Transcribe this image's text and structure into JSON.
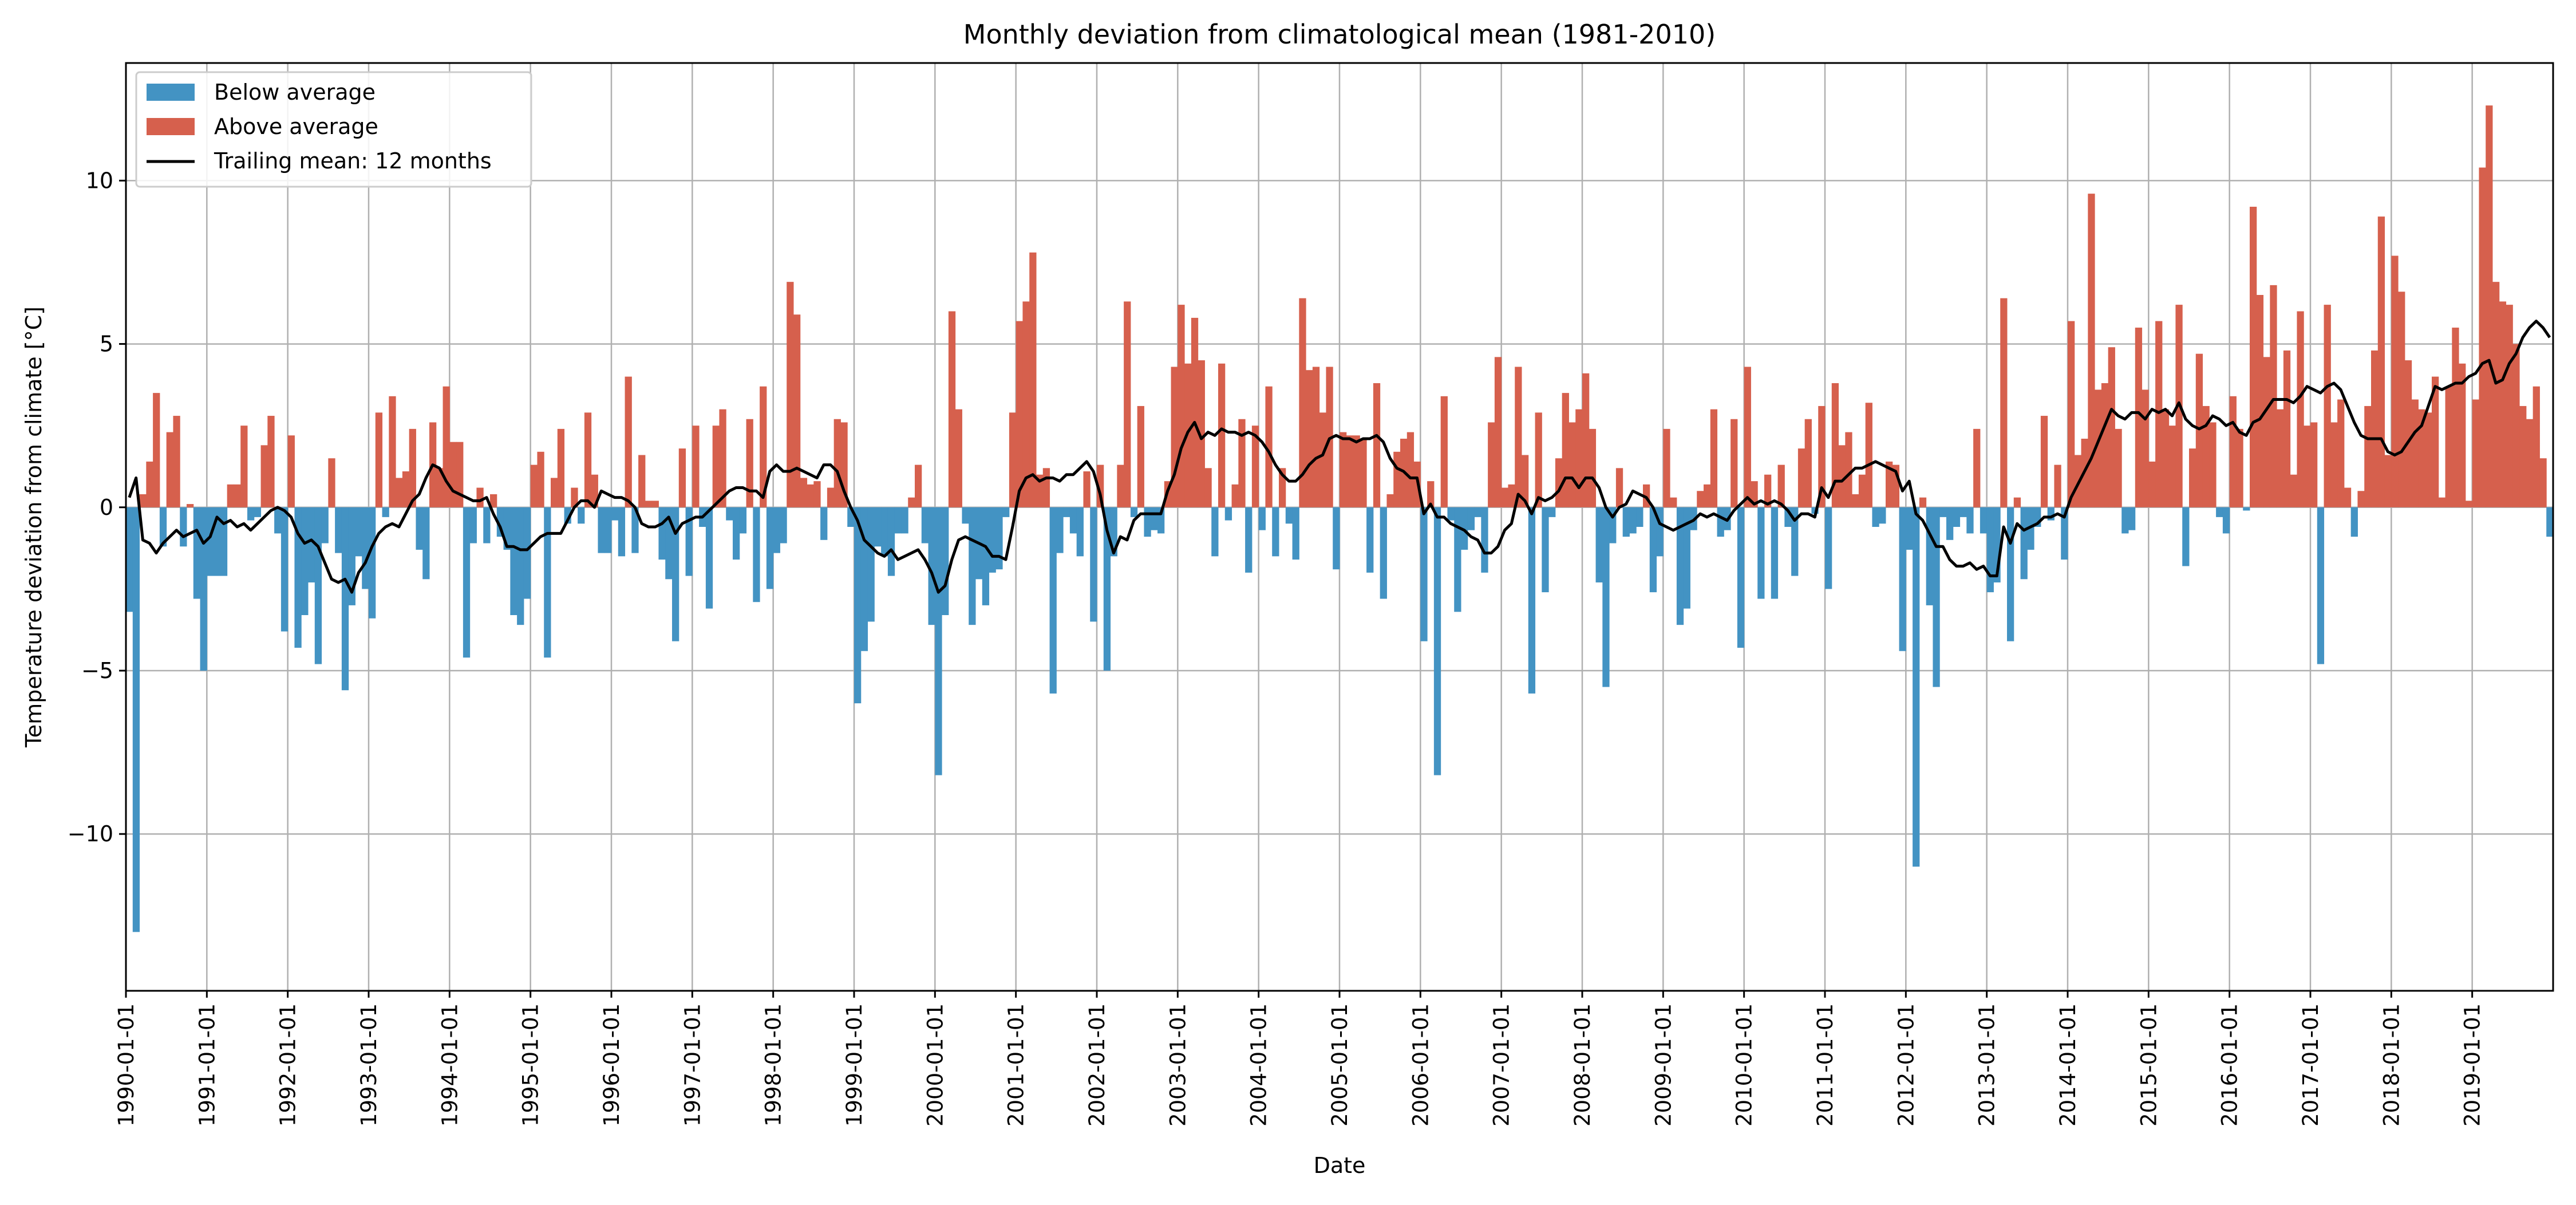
{
  "chart_data": {
    "type": "bar",
    "title": "Monthly deviation from climatological mean (1981-2010)",
    "xlabel": "Date",
    "ylabel": "Temperature deviation from climate [°C]",
    "ylim": [
      -14.8,
      13.6
    ],
    "y_ticks": [
      -10,
      -5,
      0,
      5,
      10
    ],
    "y_tick_labels": [
      "−10",
      "−5",
      "0",
      "5",
      "10"
    ],
    "x_tick_labels": [
      "1990-01-01",
      "1991-01-01",
      "1992-01-01",
      "1993-01-01",
      "1994-01-01",
      "1995-01-01",
      "1996-01-01",
      "1997-01-01",
      "1998-01-01",
      "1999-01-01",
      "2000-01-01",
      "2001-01-01",
      "2002-01-01",
      "2003-01-01",
      "2004-01-01",
      "2005-01-01",
      "2006-01-01",
      "2007-01-01",
      "2008-01-01",
      "2009-01-01",
      "2010-01-01",
      "2011-01-01",
      "2012-01-01",
      "2013-01-01",
      "2014-01-01",
      "2015-01-01",
      "2016-01-01",
      "2017-01-01",
      "2018-01-01",
      "2019-01-01"
    ],
    "x_start": "1990-01",
    "months": 360,
    "grid": true,
    "legend_position": "top-left",
    "legend": [
      "Below average",
      "Above average",
      "Trailing mean: 12 months"
    ],
    "colors": {
      "below": "#4393c3",
      "above": "#d6604d",
      "trailing_mean": "#000000"
    },
    "series": [
      {
        "name": "Monthly deviation",
        "values": [
          [
            -3.2,
            -13.0,
            0.4,
            1.4,
            3.5,
            -1.2,
            2.3,
            2.8,
            -1.2,
            0.1,
            -2.8,
            -5.0
          ],
          [
            -2.1,
            -2.1,
            -2.1,
            0.7,
            0.7,
            2.5,
            -0.4,
            -0.3,
            1.9,
            2.8,
            -0.8,
            -3.8
          ],
          [
            2.2,
            -4.3,
            -3.3,
            -2.3,
            -4.8,
            -1.1,
            1.5,
            -1.4,
            -5.6,
            -3.0,
            -1.5,
            -2.5
          ],
          [
            -3.4,
            2.9,
            -0.3,
            3.4,
            0.9,
            1.1,
            2.4,
            -1.3,
            -2.2,
            2.6,
            1.2,
            3.7
          ],
          [
            2.0,
            2.0,
            -4.6,
            -1.1,
            0.6,
            -1.1,
            0.4,
            -0.9,
            -1.3,
            -3.3,
            -3.6,
            -2.8
          ],
          [
            1.3,
            1.7,
            -4.6,
            0.9,
            2.4,
            -0.5,
            0.6,
            -0.5,
            2.9,
            1.0,
            -1.4,
            -1.4
          ],
          [
            -0.4,
            -1.5,
            4.0,
            -1.4,
            1.6,
            0.2,
            0.2,
            -1.6,
            -2.2,
            -4.1,
            1.8,
            -2.1
          ],
          [
            2.5,
            -0.6,
            -3.1,
            2.5,
            3.0,
            -0.4,
            -1.6,
            -0.8,
            2.7,
            -2.9,
            3.7,
            -2.5
          ],
          [
            -1.4,
            -1.1,
            6.9,
            5.9,
            0.9,
            0.7,
            0.8,
            -1.0,
            0.6,
            2.7,
            2.6,
            -0.6
          ],
          [
            -6.0,
            -4.4,
            -3.5,
            -1.2,
            -1.5,
            -2.1,
            -0.8,
            -0.8,
            0.3,
            1.3,
            -1.1,
            -3.6
          ],
          [
            -8.2,
            -3.3,
            6.0,
            3.0,
            -0.5,
            -3.6,
            -2.2,
            -3.0,
            -2.0,
            -1.9,
            -0.3,
            2.9
          ],
          [
            5.7,
            6.3,
            7.8,
            1.0,
            1.2,
            -5.7,
            -1.4,
            -0.3,
            -0.8,
            -1.5,
            1.1,
            -3.5
          ],
          [
            1.3,
            -5.0,
            -1.5,
            1.3,
            6.3,
            -0.3,
            3.1,
            -0.9,
            -0.7,
            -0.8,
            0.8,
            4.3
          ],
          [
            6.2,
            4.4,
            5.8,
            4.5,
            1.2,
            -1.5,
            4.4,
            -0.4,
            0.7,
            2.7,
            -2.0,
            2.5
          ],
          [
            -0.7,
            3.7,
            -1.5,
            1.2,
            -0.5,
            -1.6,
            6.4,
            4.2,
            4.3,
            2.9,
            4.3,
            -1.9
          ],
          [
            2.3,
            2.2,
            2.2,
            2.1,
            -2.0,
            3.8,
            -2.8,
            0.4,
            1.7,
            2.1,
            2.3,
            1.4
          ],
          [
            -4.1,
            0.8,
            -8.2,
            3.4,
            -0.4,
            -3.2,
            -1.3,
            -0.7,
            -0.3,
            -2.0,
            2.6,
            4.6
          ],
          [
            0.6,
            0.7,
            4.3,
            1.6,
            -5.7,
            2.9,
            -2.6,
            -0.3,
            1.5,
            3.5,
            2.6,
            3.0
          ],
          [
            4.1,
            2.4,
            -2.3,
            -5.5,
            -1.1,
            1.2,
            -0.9,
            -0.8,
            -0.6,
            0.7,
            -2.6,
            -1.5
          ],
          [
            2.4,
            0.3,
            -3.6,
            -3.1,
            -0.7,
            0.5,
            0.7,
            3.0,
            -0.9,
            -0.7,
            2.7,
            -4.3
          ],
          [
            4.3,
            0.8,
            -2.8,
            1.0,
            -2.8,
            1.3,
            -0.6,
            -2.1,
            1.8,
            2.7,
            -0.2,
            3.1
          ],
          [
            -2.5,
            3.8,
            1.9,
            2.3,
            0.4,
            1.0,
            3.2,
            -0.6,
            -0.5,
            1.4,
            1.3,
            -4.4
          ],
          [
            -1.3,
            -11.0,
            0.3,
            -3.0,
            -5.5,
            -0.3,
            -1.0,
            -0.6,
            -0.3,
            -0.8,
            2.4,
            -0.8
          ],
          [
            -2.6,
            -2.3,
            6.4,
            -4.1,
            0.3,
            -2.2,
            -1.3,
            -0.6,
            2.8,
            -0.4,
            1.3,
            -1.6
          ],
          [
            5.7,
            1.6,
            2.1,
            9.6,
            3.6,
            3.8,
            4.9,
            2.4,
            -0.8,
            -0.7,
            5.5,
            3.6
          ],
          [
            1.4,
            5.7,
            3.0,
            2.5,
            6.2,
            -1.8,
            1.8,
            4.7,
            3.1,
            2.6,
            -0.3,
            -0.8
          ],
          [
            3.4,
            2.4,
            -0.1,
            9.2,
            6.5,
            4.6,
            6.8,
            3.0,
            4.8,
            1.0,
            6.0,
            2.5
          ],
          [
            2.6,
            -4.8,
            6.2,
            2.6,
            3.3,
            0.6,
            -0.9,
            0.5,
            3.1,
            4.8,
            8.9,
            1.6
          ],
          [
            7.7,
            6.6,
            4.5,
            3.3,
            3.0,
            2.9,
            4.0,
            0.3,
            3.7,
            5.5,
            4.4,
            0.2
          ],
          [
            3.3,
            10.4,
            12.3,
            6.9,
            6.3,
            6.2,
            5.0,
            3.1,
            2.7,
            3.7,
            1.5,
            -0.9
          ]
        ]
      },
      {
        "name": "Trailing mean: 12 months",
        "values": [
          [
            0.3,
            0.9,
            -1.0,
            -1.1,
            -1.4,
            -1.1,
            -0.9,
            -0.7,
            -0.9,
            -0.8,
            -0.7,
            -1.1
          ],
          [
            -0.9,
            -0.3,
            -0.5,
            -0.4,
            -0.6,
            -0.5,
            -0.7,
            -0.5,
            -0.3,
            -0.1,
            0.0,
            -0.1
          ],
          [
            -0.3,
            -0.8,
            -1.1,
            -1.0,
            -1.2,
            -1.7,
            -2.2,
            -2.3,
            -2.2,
            -2.6,
            -2.0,
            -1.7
          ],
          [
            -1.2,
            -0.8,
            -0.6,
            -0.5,
            -0.6,
            -0.2,
            0.2,
            0.4,
            0.9,
            1.3,
            1.2,
            0.8
          ],
          [
            0.5,
            0.4,
            0.3,
            0.2,
            0.2,
            0.3,
            -0.2,
            -0.6,
            -1.2,
            -1.2,
            -1.3,
            -1.3
          ],
          [
            -1.1,
            -0.9,
            -0.8,
            -0.8,
            -0.8,
            -0.4,
            0.0,
            0.2,
            0.2,
            0.0,
            0.5,
            0.4
          ],
          [
            0.3,
            0.3,
            0.2,
            0.0,
            -0.5,
            -0.6,
            -0.6,
            -0.5,
            -0.3,
            -0.8,
            -0.5,
            -0.4
          ],
          [
            -0.3,
            -0.3,
            -0.1,
            0.1,
            0.3,
            0.5,
            0.6,
            0.6,
            0.5,
            0.5,
            0.3,
            1.1
          ],
          [
            1.3,
            1.1,
            1.1,
            1.2,
            1.1,
            1.0,
            0.9,
            1.3,
            1.3,
            1.1,
            0.5,
            0.0
          ],
          [
            -0.4,
            -1.0,
            -1.2,
            -1.4,
            -1.5,
            -1.3,
            -1.6,
            -1.5,
            -1.4,
            -1.3,
            -1.6,
            -2.0
          ],
          [
            -2.6,
            -2.4,
            -1.6,
            -1.0,
            -0.9,
            -1.0,
            -1.1,
            -1.2,
            -1.5,
            -1.5,
            -1.6,
            -0.6
          ],
          [
            0.5,
            0.9,
            1.0,
            0.8,
            0.9,
            0.9,
            0.8,
            1.0,
            1.0,
            1.2,
            1.4,
            1.1
          ],
          [
            0.4,
            -0.7,
            -1.4,
            -0.9,
            -1.0,
            -0.4,
            -0.2,
            -0.2,
            -0.2,
            -0.2,
            0.5,
            1.0
          ],
          [
            1.8,
            2.3,
            2.6,
            2.1,
            2.3,
            2.2,
            2.4,
            2.3,
            2.3,
            2.2,
            2.3,
            2.2
          ],
          [
            2.0,
            1.7,
            1.3,
            1.0,
            0.8,
            0.8,
            1.0,
            1.3,
            1.5,
            1.6,
            2.1,
            2.2
          ],
          [
            2.1,
            2.1,
            2.0,
            2.1,
            2.1,
            2.2,
            2.0,
            1.5,
            1.2,
            1.1,
            0.9,
            0.9
          ],
          [
            -0.2,
            0.1,
            -0.3,
            -0.3,
            -0.5,
            -0.6,
            -0.7,
            -0.9,
            -1.0,
            -1.4,
            -1.4,
            -1.2
          ],
          [
            -0.7,
            -0.5,
            0.4,
            0.2,
            -0.2,
            0.3,
            0.2,
            0.3,
            0.5,
            0.9,
            0.9,
            0.6
          ],
          [
            0.9,
            0.9,
            0.6,
            0.0,
            -0.3,
            0.0,
            0.1,
            0.5,
            0.4,
            0.3,
            0.0,
            -0.5
          ],
          [
            -0.6,
            -0.7,
            -0.6,
            -0.5,
            -0.4,
            -0.2,
            -0.3,
            -0.2,
            -0.3,
            -0.4,
            -0.1,
            0.1
          ],
          [
            0.3,
            0.1,
            0.2,
            0.1,
            0.2,
            0.1,
            -0.1,
            -0.4,
            -0.2,
            -0.2,
            -0.3,
            0.6
          ],
          [
            0.3,
            0.8,
            0.8,
            1.0,
            1.2,
            1.2,
            1.3,
            1.4,
            1.3,
            1.2,
            1.1,
            0.5
          ],
          [
            0.8,
            -0.2,
            -0.4,
            -0.8,
            -1.2,
            -1.2,
            -1.6,
            -1.8,
            -1.8,
            -1.7,
            -1.9,
            -1.8
          ],
          [
            -2.1,
            -2.1,
            -0.6,
            -1.1,
            -0.5,
            -0.7,
            -0.6,
            -0.5,
            -0.3,
            -0.3,
            -0.2,
            -0.3
          ],
          [
            0.3,
            0.7,
            1.1,
            1.5,
            2.0,
            2.5,
            3.0,
            2.8,
            2.7,
            2.9,
            2.9,
            2.7
          ],
          [
            3.0,
            2.9,
            3.0,
            2.8,
            3.2,
            2.7,
            2.5,
            2.4,
            2.5,
            2.8,
            2.7,
            2.5
          ],
          [
            2.6,
            2.3,
            2.2,
            2.6,
            2.7,
            3.0,
            3.3,
            3.3,
            3.3,
            3.2,
            3.4,
            3.7
          ],
          [
            3.6,
            3.5,
            3.7,
            3.8,
            3.6,
            3.1,
            2.6,
            2.2,
            2.1,
            2.1,
            2.1,
            1.7
          ],
          [
            1.6,
            1.7,
            2.0,
            2.3,
            2.5,
            3.1,
            3.7,
            3.6,
            3.7,
            3.8,
            3.8,
            4.0
          ],
          [
            4.1,
            4.4,
            4.5,
            3.8,
            3.9,
            4.4,
            4.7,
            5.2,
            5.5,
            5.7,
            5.5,
            5.2
          ]
        ]
      }
    ]
  }
}
